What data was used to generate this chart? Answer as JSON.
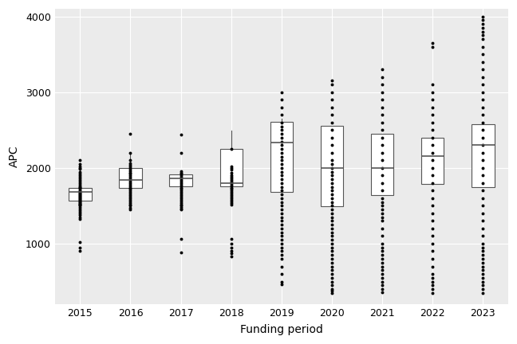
{
  "years": [
    2015,
    2016,
    2017,
    2018,
    2019,
    2020,
    2021,
    2022,
    2023
  ],
  "box_stats": {
    "2015": {
      "q1": 1570,
      "median": 1680,
      "q3": 1740,
      "whislo": 1500,
      "whishi": 1990
    },
    "2016": {
      "q1": 1740,
      "median": 1840,
      "q3": 2000,
      "whislo": 1450,
      "whishi": 2200
    },
    "2017": {
      "q1": 1760,
      "median": 1860,
      "q3": 1910,
      "whislo": 1750,
      "whishi": 1940
    },
    "2018": {
      "q1": 1760,
      "median": 1800,
      "q3": 2250,
      "whislo": 1560,
      "whishi": 2490
    },
    "2019": {
      "q1": 1680,
      "median": 2340,
      "q3": 2610,
      "whislo": 1680,
      "whishi": 2650
    },
    "2020": {
      "q1": 1490,
      "median": 2000,
      "q3": 2560,
      "whislo": 1490,
      "whishi": 2560
    },
    "2021": {
      "q1": 1640,
      "median": 2000,
      "q3": 2450,
      "whislo": 1640,
      "whishi": 2450
    },
    "2022": {
      "q1": 1790,
      "median": 2160,
      "q3": 2400,
      "whislo": 1790,
      "whishi": 2400
    },
    "2023": {
      "q1": 1750,
      "median": 2300,
      "q3": 2580,
      "whislo": 1750,
      "whishi": 2580
    }
  },
  "outliers": {
    "2015": [
      900,
      950,
      1020,
      1330,
      1350,
      1380,
      1400,
      1420,
      1440,
      1460,
      1480,
      1500,
      1510,
      1520,
      1530,
      1540,
      1550,
      1560,
      1570,
      1580,
      1590,
      1600,
      1610,
      1620,
      1630,
      1640,
      1650,
      1660,
      1670,
      1680,
      1690,
      1700,
      1720,
      1740,
      1750,
      1760,
      1780,
      1800,
      1820,
      1840,
      1860,
      1880,
      1900,
      1920,
      1950,
      1990,
      2000,
      2020,
      2050,
      2100
    ],
    "2016": [
      1450,
      1470,
      1500,
      1520,
      1540,
      1560,
      1580,
      1600,
      1620,
      1640,
      1660,
      1680,
      1700,
      1720,
      1740,
      1760,
      1780,
      1800,
      1820,
      1840,
      1860,
      1880,
      1900,
      1920,
      1940,
      1960,
      1980,
      2000,
      2020,
      2040,
      2060,
      2100,
      2200,
      2450
    ],
    "2017": [
      880,
      1060,
      1450,
      1460,
      1480,
      1500,
      1520,
      1540,
      1560,
      1580,
      1600,
      1620,
      1640,
      1660,
      1680,
      1700,
      1720,
      1740,
      1760,
      1780,
      1800,
      1820,
      1840,
      1860,
      1880,
      1900,
      1920,
      1940,
      1960,
      2200,
      2440
    ],
    "2018": [
      830,
      870,
      900,
      950,
      1000,
      1060,
      1520,
      1540,
      1560,
      1580,
      1600,
      1620,
      1640,
      1660,
      1680,
      1700,
      1720,
      1740,
      1760,
      1780,
      1800,
      1820,
      1840,
      1860,
      1880,
      1900,
      1940,
      1980,
      2000,
      2020,
      2250
    ],
    "2019": [
      460,
      500,
      600,
      700,
      800,
      850,
      900,
      950,
      1000,
      1050,
      1100,
      1150,
      1200,
      1250,
      1300,
      1350,
      1400,
      1450,
      1500,
      1550,
      1600,
      1650,
      1700,
      1750,
      1800,
      1850,
      1900,
      1950,
      2000,
      2050,
      2100,
      2150,
      2200,
      2250,
      2300,
      2350,
      2400,
      2450,
      2500,
      2550,
      2600,
      2700,
      2800,
      2900,
      3000
    ],
    "2020": [
      350,
      380,
      400,
      450,
      500,
      550,
      600,
      650,
      700,
      750,
      800,
      850,
      900,
      950,
      1000,
      1050,
      1100,
      1150,
      1200,
      1250,
      1300,
      1350,
      1400,
      1450,
      1500,
      1550,
      1600,
      1650,
      1700,
      1750,
      1800,
      1850,
      1900,
      1950,
      2000,
      2050,
      2100,
      2200,
      2300,
      2400,
      2500,
      2600,
      2700,
      2800,
      2900,
      3000,
      3100,
      3150
    ],
    "2021": [
      360,
      400,
      450,
      500,
      550,
      600,
      650,
      700,
      750,
      800,
      850,
      900,
      950,
      1000,
      1100,
      1200,
      1300,
      1350,
      1400,
      1450,
      1500,
      1550,
      1600,
      1700,
      1800,
      1900,
      2000,
      2100,
      2200,
      2300,
      2400,
      2500,
      2600,
      2700,
      2800,
      2900,
      3000,
      3100,
      3200,
      3300
    ],
    "2022": [
      350,
      400,
      450,
      500,
      550,
      600,
      700,
      800,
      900,
      1000,
      1100,
      1200,
      1300,
      1400,
      1500,
      1600,
      1700,
      1800,
      1900,
      2000,
      2100,
      2200,
      2300,
      2400,
      2500,
      2600,
      2700,
      2800,
      2900,
      3000,
      3100,
      3600,
      3650
    ],
    "2023": [
      350,
      400,
      450,
      500,
      550,
      600,
      650,
      700,
      750,
      800,
      850,
      900,
      950,
      1000,
      1100,
      1200,
      1300,
      1400,
      1500,
      1600,
      1700,
      1800,
      1900,
      2000,
      2100,
      2200,
      2300,
      2400,
      2500,
      2600,
      2700,
      2800,
      2900,
      3000,
      3100,
      3200,
      3300,
      3400,
      3500,
      3600,
      3700,
      3750,
      3800,
      3850,
      3900,
      3950,
      4000
    ]
  },
  "xlabel": "Funding period",
  "ylabel": "APC",
  "ylim": [
    200,
    4100
  ],
  "yticks": [
    1000,
    2000,
    3000,
    4000
  ],
  "box_color": "white",
  "box_edge_color": "#555555",
  "median_color": "#555555",
  "whisker_color": "#555555",
  "flier_color": "#000000",
  "flier_size": 1.8,
  "grid_color": "#ffffff",
  "panel_background": "#ebebeb",
  "fig_background": "#ffffff",
  "box_width": 0.45
}
